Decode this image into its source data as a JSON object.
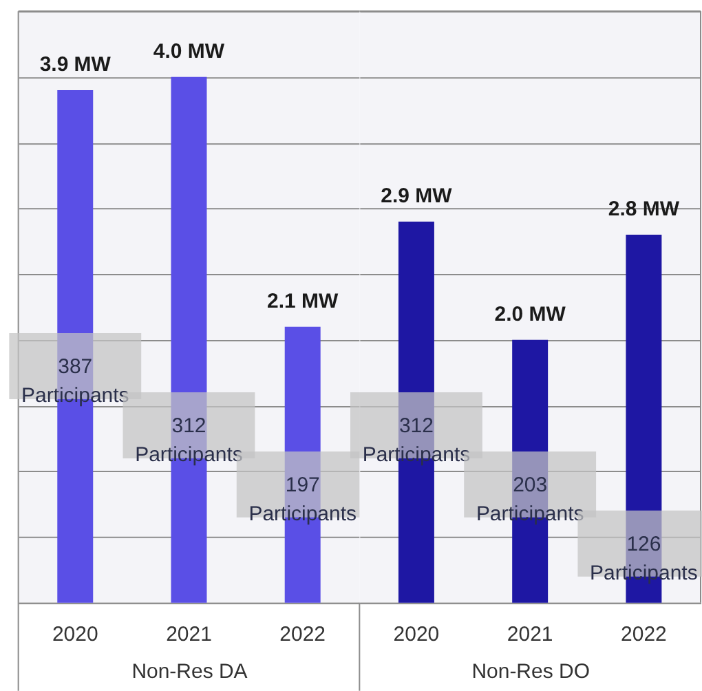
{
  "chart_data": [
    {
      "type": "bar",
      "categories": [
        "2020",
        "2021",
        "2022"
      ],
      "values": [
        3.9,
        4.0,
        2.1
      ],
      "colors": [
        "#5a4fe6",
        "#5a4fe6",
        "#5a4fe6"
      ],
      "value_labels": [
        "3.9 MW",
        "4.0 MW",
        "2.1 MW"
      ],
      "xlabel": "Non-Res DA",
      "ylim": [
        0,
        4.5
      ],
      "yticks": [
        0,
        0.5,
        1,
        1.5,
        2,
        2.5,
        3,
        3.5,
        4,
        4.5
      ],
      "tick_labels": "x",
      "grid": "y",
      "legend": false,
      "annotations": [
        "387\nParticipants",
        "312\nParticipants",
        "197\nParticipants"
      ]
    },
    {
      "type": "bar",
      "categories": [
        "2020",
        "2021",
        "2022"
      ],
      "values": [
        2.9,
        2.0,
        2.8
      ],
      "colors": [
        "#1e17a3",
        "#1e17a3",
        "#1e17a3"
      ],
      "value_labels": [
        "2.9 MW",
        "2.0 MW",
        "2.8 MW"
      ],
      "xlabel": "Non-Res DO",
      "ylim": [
        0,
        4.5
      ],
      "yticks": [
        0,
        0.5,
        1,
        1.5,
        2,
        2.5,
        3,
        3.5,
        4,
        4.5
      ],
      "tick_labels": "x",
      "grid": "y",
      "legend": false,
      "annotations": [
        "312\nParticipants",
        "203\nParticipants",
        "126\nParticipants"
      ]
    }
  ]
}
